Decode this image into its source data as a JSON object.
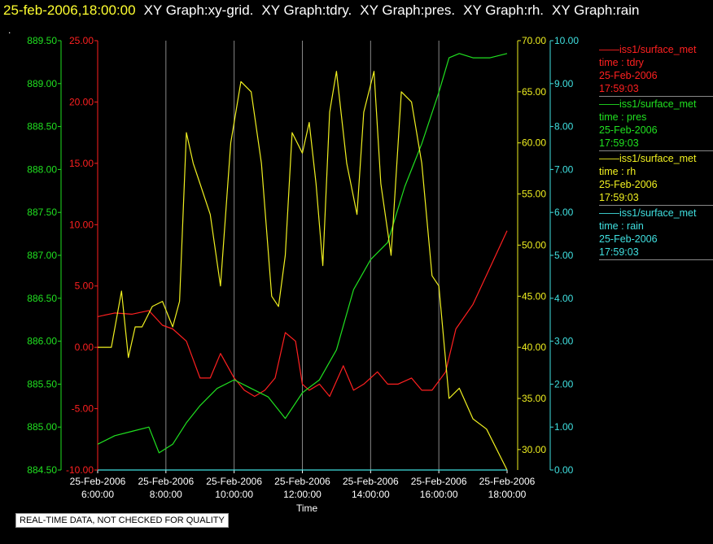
{
  "header": {
    "timestamp": "25-feb-2006,18:00:00",
    "graphs": [
      "XY Graph:xy-grid.",
      "XY Graph:tdry.",
      "XY Graph:pres.",
      "XY Graph:rh.",
      "XY Graph:rain"
    ],
    "dot": "."
  },
  "legend": [
    {
      "name": "iss1/surface_met",
      "var": "time : tdry",
      "date": "25-Feb-2006",
      "time": "17:59:03",
      "color": "#ff2020"
    },
    {
      "name": "iss1/surface_met",
      "var": "time : pres",
      "date": "25-Feb-2006",
      "time": "17:59:03",
      "color": "#20e020"
    },
    {
      "name": "iss1/surface_met",
      "var": "time : rh",
      "date": "25-Feb-2006",
      "time": "17:59:03",
      "color": "#f0f020"
    },
    {
      "name": "iss1/surface_met",
      "var": "time : rain",
      "date": "25-Feb-2006",
      "time": "17:59:03",
      "color": "#40e0e0"
    }
  ],
  "notice": "REAL-TIME DATA, NOT CHECKED FOR QUALITY",
  "chart_data": {
    "type": "line",
    "xlabel": "Time",
    "x_ticks": [
      [
        "25-Feb-2006",
        "6:00:00"
      ],
      [
        "25-Feb-2006",
        "8:00:00"
      ],
      [
        "25-Feb-2006",
        "10:00:00"
      ],
      [
        "25-Feb-2006",
        "12:00:00"
      ],
      [
        "25-Feb-2006",
        "14:00:00"
      ],
      [
        "25-Feb-2006",
        "16:00:00"
      ],
      [
        "25-Feb-2006",
        "18:00:00"
      ]
    ],
    "xlim_hours": [
      6,
      18
    ],
    "grid": "vertical",
    "axes": {
      "tdry": {
        "side": "left-inner",
        "color": "#ff2020",
        "ylim": [
          -10,
          25
        ],
        "ticks": [
          "-10.00",
          "-5.00",
          "0.00",
          "5.00",
          "10.00",
          "15.00",
          "20.00",
          "25.00"
        ]
      },
      "pres": {
        "side": "left-outer",
        "color": "#20e020",
        "ylim": [
          884.5,
          889.5
        ],
        "ticks": [
          "884.50",
          "885.00",
          "885.50",
          "886.00",
          "886.50",
          "887.00",
          "887.50",
          "888.00",
          "888.50",
          "889.00",
          "889.50"
        ]
      },
      "rh": {
        "side": "right-inner",
        "color": "#f0f020",
        "ylim": [
          28,
          70
        ],
        "ticks": [
          "30.00",
          "35.00",
          "40.00",
          "45.00",
          "50.00",
          "55.00",
          "60.00",
          "65.00",
          "70.00"
        ]
      },
      "rain": {
        "side": "right-outer",
        "color": "#40e0e0",
        "ylim": [
          0,
          10
        ],
        "ticks": [
          "0.00",
          "1.00",
          "2.00",
          "3.00",
          "4.00",
          "5.00",
          "6.00",
          "7.00",
          "8.00",
          "9.00",
          "10.00"
        ]
      }
    },
    "series": [
      {
        "name": "tdry",
        "axis": "tdry",
        "color": "#ff2020",
        "x": [
          6,
          6.5,
          7,
          7.5,
          7.9,
          8.2,
          8.6,
          9.0,
          9.3,
          9.6,
          10.0,
          10.3,
          10.6,
          10.9,
          11.2,
          11.5,
          11.8,
          12.0,
          12.2,
          12.5,
          12.8,
          13.2,
          13.5,
          13.8,
          14.2,
          14.5,
          14.8,
          15.2,
          15.5,
          15.8,
          16.2,
          16.5,
          17.0,
          17.5,
          18.0
        ],
        "y": [
          2.5,
          2.8,
          2.7,
          3.0,
          1.8,
          1.5,
          0.5,
          -2.5,
          -2.5,
          -0.5,
          -2.5,
          -3.5,
          -4.0,
          -3.5,
          -2.5,
          1.2,
          0.5,
          -3.0,
          -3.5,
          -3.0,
          -4.0,
          -1.5,
          -3.5,
          -3.0,
          -2.0,
          -3.0,
          -3.0,
          -2.5,
          -3.5,
          -3.5,
          -2.0,
          1.5,
          3.5,
          6.5,
          9.5
        ]
      },
      {
        "name": "pres",
        "axis": "pres",
        "color": "#20e020",
        "x": [
          6,
          6.5,
          7,
          7.5,
          7.8,
          8.2,
          8.6,
          9.0,
          9.5,
          10.0,
          10.5,
          11.0,
          11.5,
          12.0,
          12.5,
          13.0,
          13.5,
          14.0,
          14.5,
          15.0,
          15.5,
          16.0,
          16.3,
          16.6,
          17.0,
          17.5,
          18.0
        ],
        "y": [
          884.8,
          884.9,
          884.95,
          885.0,
          884.7,
          884.8,
          885.05,
          885.25,
          885.45,
          885.55,
          885.45,
          885.35,
          885.1,
          885.4,
          885.55,
          885.9,
          886.6,
          886.95,
          887.15,
          887.8,
          888.3,
          888.9,
          889.3,
          889.35,
          889.3,
          889.3,
          889.35
        ]
      },
      {
        "name": "rh",
        "axis": "rh",
        "color": "#f0f020",
        "x": [
          6,
          6.4,
          6.7,
          6.9,
          7.1,
          7.3,
          7.6,
          7.9,
          8.2,
          8.4,
          8.6,
          8.8,
          9.0,
          9.3,
          9.6,
          9.9,
          10.2,
          10.5,
          10.8,
          11.1,
          11.3,
          11.5,
          11.7,
          12.0,
          12.2,
          12.4,
          12.6,
          12.8,
          13.0,
          13.3,
          13.6,
          13.8,
          14.1,
          14.3,
          14.6,
          14.9,
          15.2,
          15.5,
          15.8,
          16.0,
          16.3,
          16.6,
          17.0,
          17.4,
          18.0
        ],
        "y": [
          40,
          40,
          45.5,
          39,
          42,
          42,
          44,
          44.5,
          42,
          44.5,
          61,
          58,
          56,
          53,
          46,
          60,
          66,
          65,
          58,
          45,
          44,
          49,
          61,
          59,
          62,
          56,
          48,
          63,
          67,
          58,
          53,
          63,
          67,
          56,
          49,
          65,
          64,
          58,
          47,
          46,
          35,
          36,
          33,
          32,
          28
        ]
      },
      {
        "name": "rain",
        "axis": "rain",
        "color": "#40e0e0",
        "x": [
          6,
          18
        ],
        "y": [
          0,
          0
        ]
      }
    ]
  }
}
